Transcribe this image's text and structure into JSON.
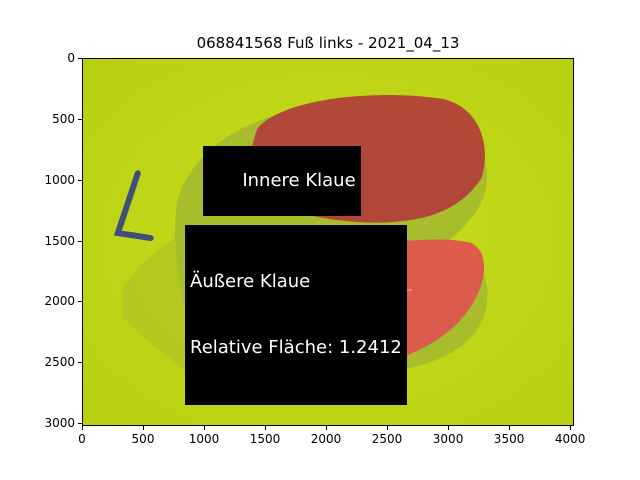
{
  "title": "068841568 Fuß links - 2021_04_13",
  "annotations": {
    "inner": "Innere Klaue",
    "outer_line1": "Äußere Klaue",
    "outer_line2": "Relative Fläche: 1.2412"
  },
  "axes": {
    "x_ticks": [
      "0",
      "500",
      "1000",
      "1500",
      "2000",
      "2500",
      "3000",
      "3500",
      "4000"
    ],
    "y_ticks": [
      "0",
      "500",
      "1000",
      "1500",
      "2000",
      "2500",
      "3000"
    ],
    "x_range": [
      0,
      4032
    ],
    "y_range": [
      3024,
      0
    ]
  },
  "colors": {
    "background_mat": "#c9de1a",
    "overlay_inner": "#b03a3a",
    "overlay_outer": "#e04a4a"
  }
}
